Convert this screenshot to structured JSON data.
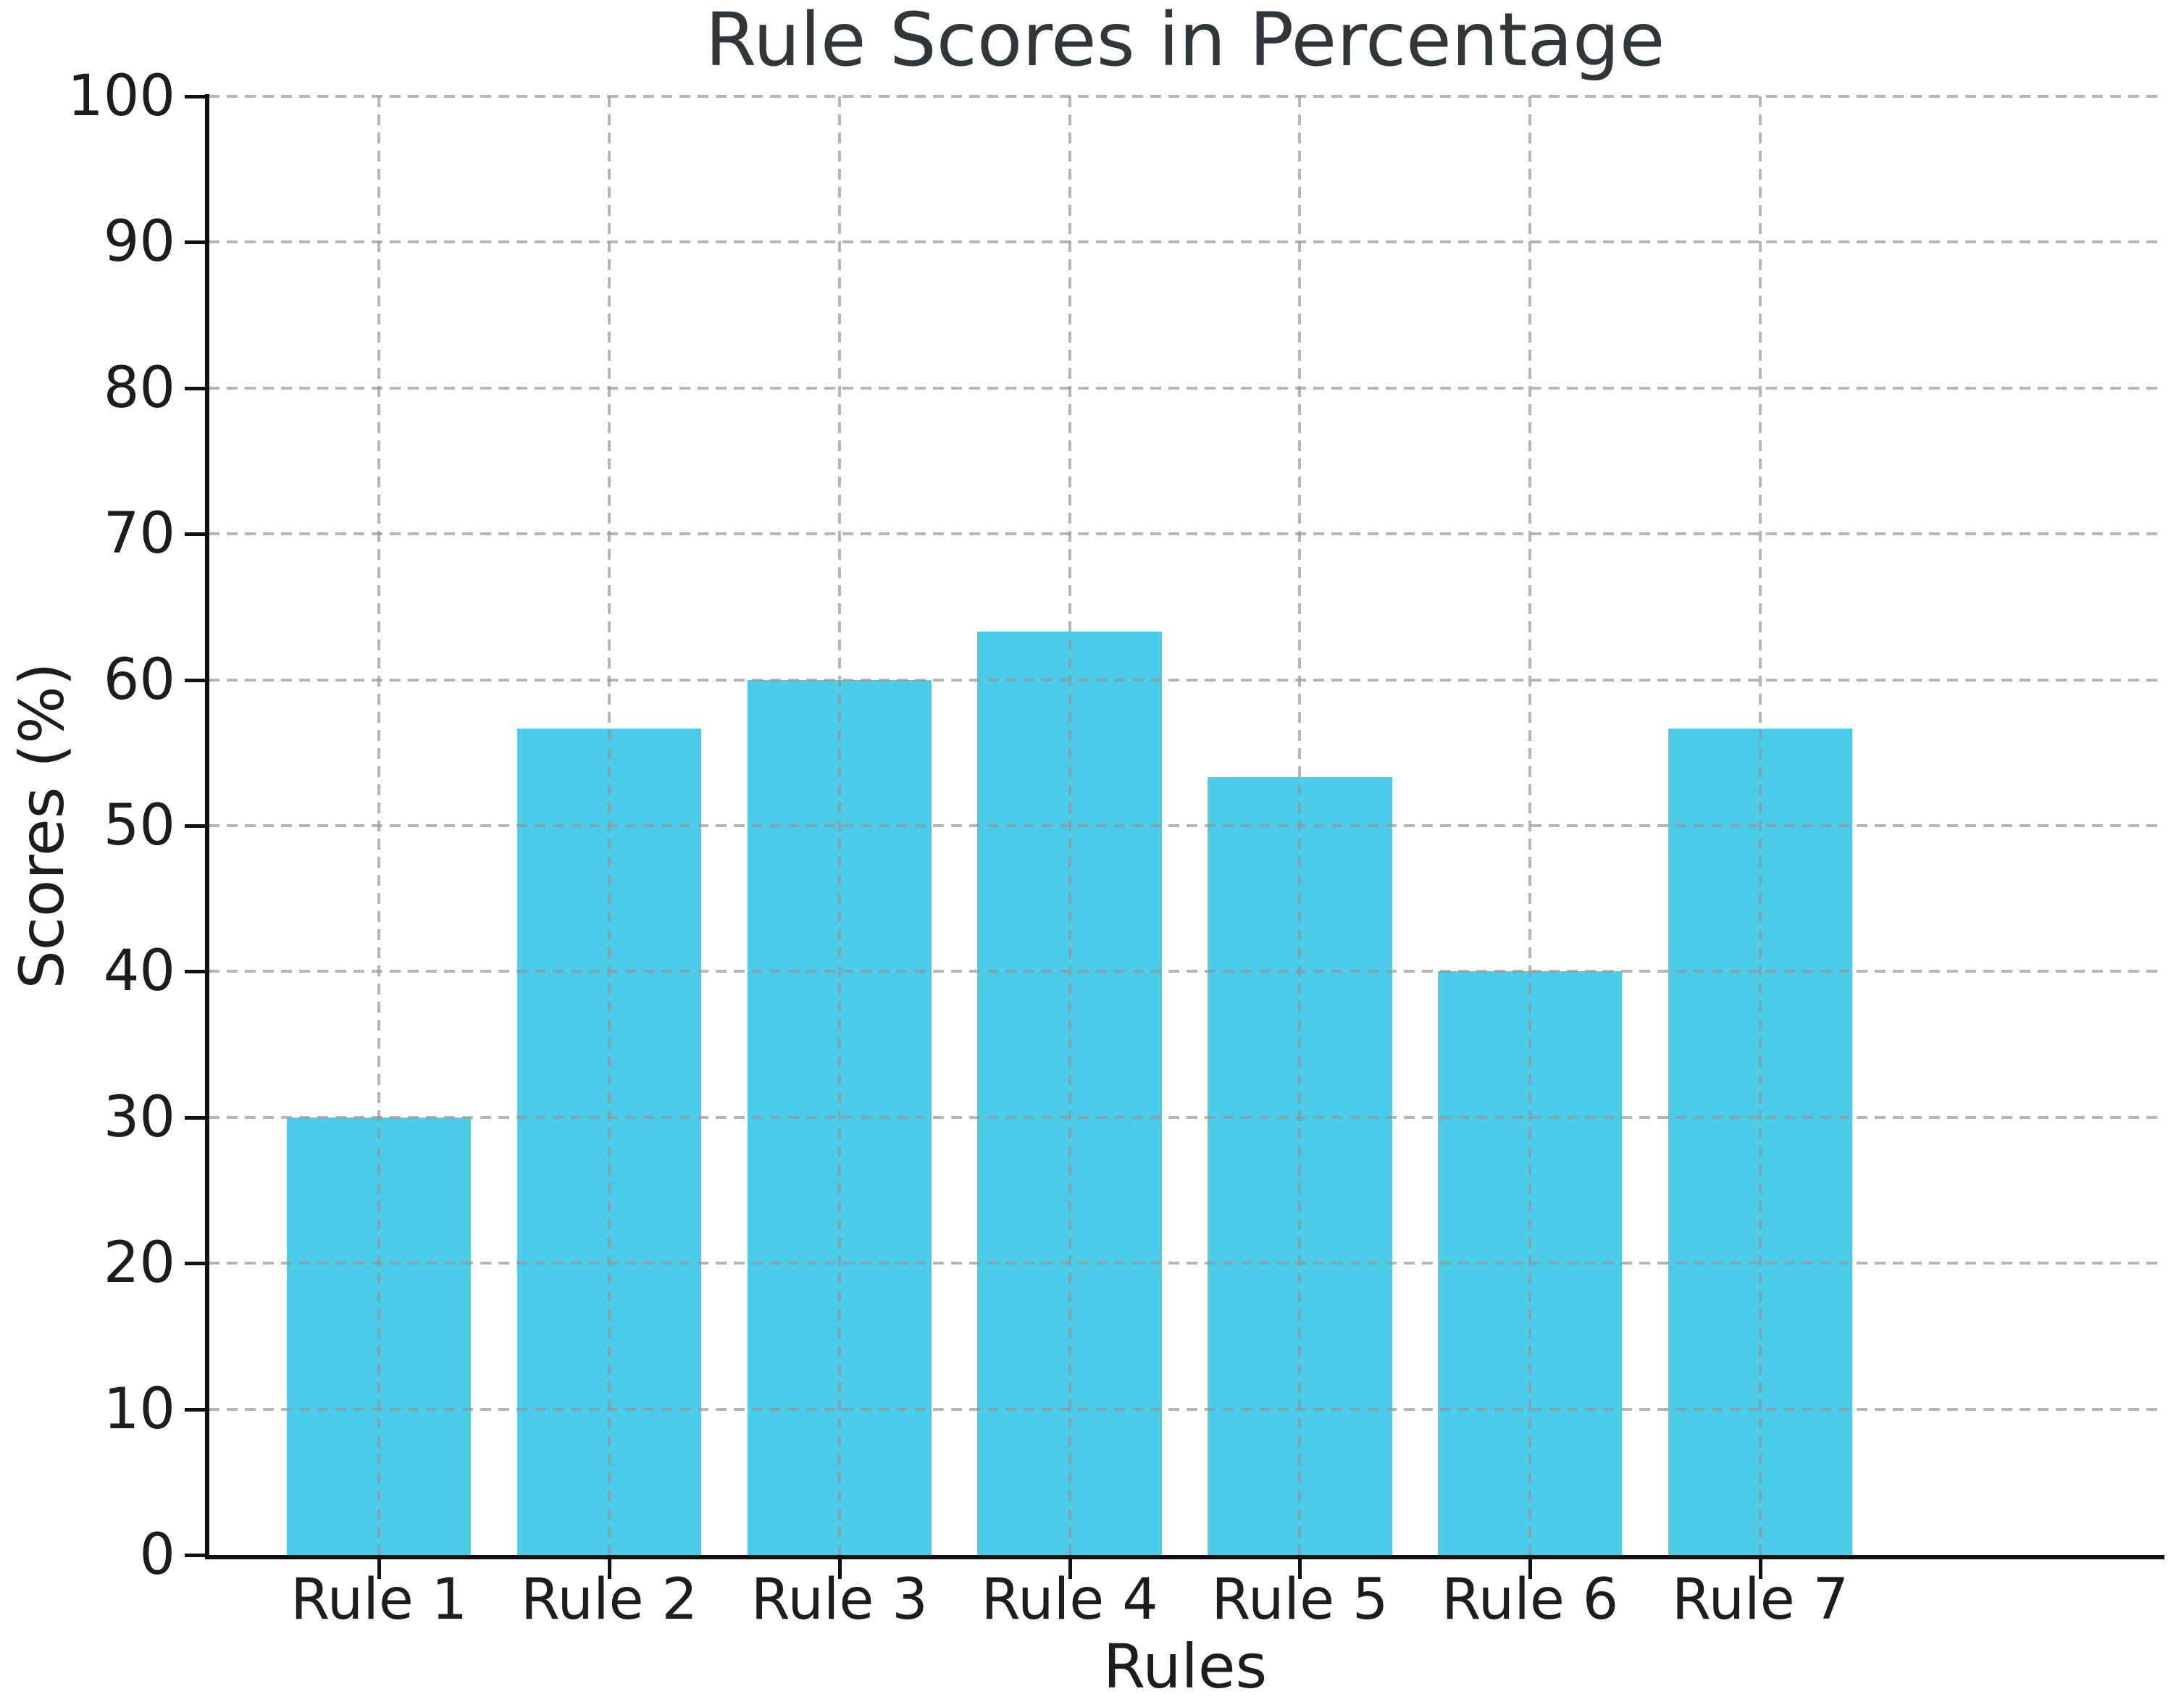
{
  "figure": {
    "background_color": "#ffffff"
  },
  "chart_data": {
    "type": "bar",
    "title": "Rule Scores in Percentage",
    "xlabel": "Rules",
    "ylabel": "Scores (%)",
    "categories": [
      "Rule 1",
      "Rule 2",
      "Rule 3",
      "Rule 4",
      "Rule 5",
      "Rule 6",
      "Rule 7"
    ],
    "values": [
      30,
      56.67,
      60,
      63.33,
      53.33,
      40,
      56.67
    ],
    "ylim": [
      0,
      100
    ],
    "y_ticks": [
      0,
      10,
      20,
      30,
      40,
      50,
      60,
      70,
      80,
      90,
      100
    ],
    "grid": "dashed gray, horizontal and vertical, drawn above bars",
    "legend_position": "none",
    "bar_color": "#4bcdea",
    "grid_color": "#c8c8c8",
    "axis_color": "#111111",
    "text_color": "#1d1d1d",
    "title_color": "#31363b"
  }
}
